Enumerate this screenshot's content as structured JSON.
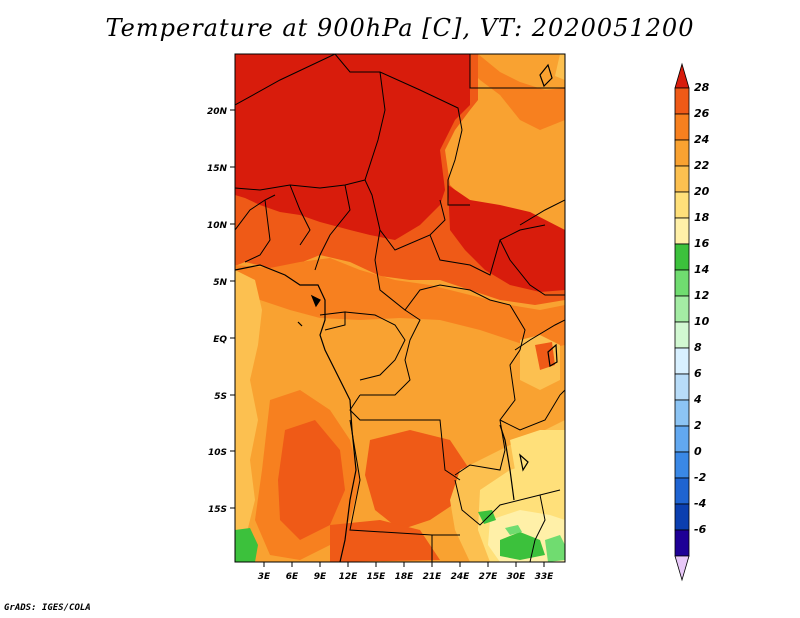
{
  "title": "Temperature at 900hPa [C], VT: 2020051200",
  "footer": "GrADS: IGES/COLA",
  "map": {
    "lat_labels": [
      "20N",
      "15N",
      "10N",
      "5N",
      "EQ",
      "5S",
      "10S",
      "15S"
    ],
    "lon_labels": [
      "3E",
      "6E",
      "9E",
      "12E",
      "15E",
      "18E",
      "21E",
      "24E",
      "27E",
      "30E",
      "33E"
    ]
  },
  "colorbar": {
    "labels": [
      "28",
      "26",
      "24",
      "22",
      "20",
      "18",
      "16",
      "14",
      "12",
      "10",
      "8",
      "6",
      "4",
      "2",
      "0",
      "-2",
      "-4",
      "-6"
    ],
    "colors": [
      "#e8c8f8",
      "#1e0096",
      "#0b3fb0",
      "#1f64d2",
      "#3a88e6",
      "#62a8f0",
      "#8cc4f4",
      "#b8dcf8",
      "#d8f0ff",
      "#d2f8d2",
      "#a4eca4",
      "#70dc70",
      "#3cc13c",
      "#fff0a8",
      "#ffe07a",
      "#fcc050",
      "#f9a231",
      "#f7801f",
      "#ef5a17",
      "#d81c0c"
    ]
  }
}
